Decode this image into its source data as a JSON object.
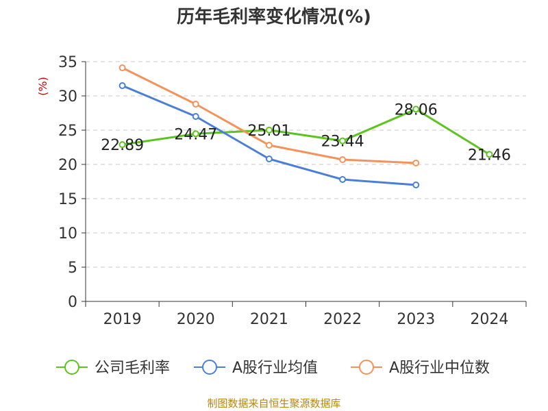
{
  "title": "历年毛利率变化情况(%)",
  "source_note": "制图数据来自恒生聚源数据库",
  "chart_data": {
    "type": "line",
    "title": "历年毛利率变化情况(%)",
    "xlabel": "",
    "ylabel": "(%)",
    "categories": [
      "2019",
      "2020",
      "2021",
      "2022",
      "2023",
      "2024"
    ],
    "ylim": [
      0,
      35
    ],
    "yticks": [
      0,
      5,
      10,
      15,
      20,
      25,
      30,
      35
    ],
    "grid": true,
    "legend_position": "bottom",
    "series": [
      {
        "name": "公司毛利率",
        "color": "#5cc41f",
        "values": [
          22.89,
          24.47,
          25.01,
          23.44,
          28.06,
          21.46
        ],
        "show_labels": true,
        "labels": [
          "22.89",
          "24.47",
          "25.01",
          "23.44",
          "28.06",
          "21.46"
        ]
      },
      {
        "name": "A股行业均值",
        "color": "#4a7fd8",
        "values": [
          31.5,
          27.0,
          20.8,
          17.8,
          17.0,
          null
        ],
        "show_labels": false
      },
      {
        "name": "A股行业中位数",
        "color": "#f5925a",
        "values": [
          34.1,
          28.8,
          22.8,
          20.7,
          20.2,
          null
        ],
        "show_labels": false
      }
    ]
  }
}
